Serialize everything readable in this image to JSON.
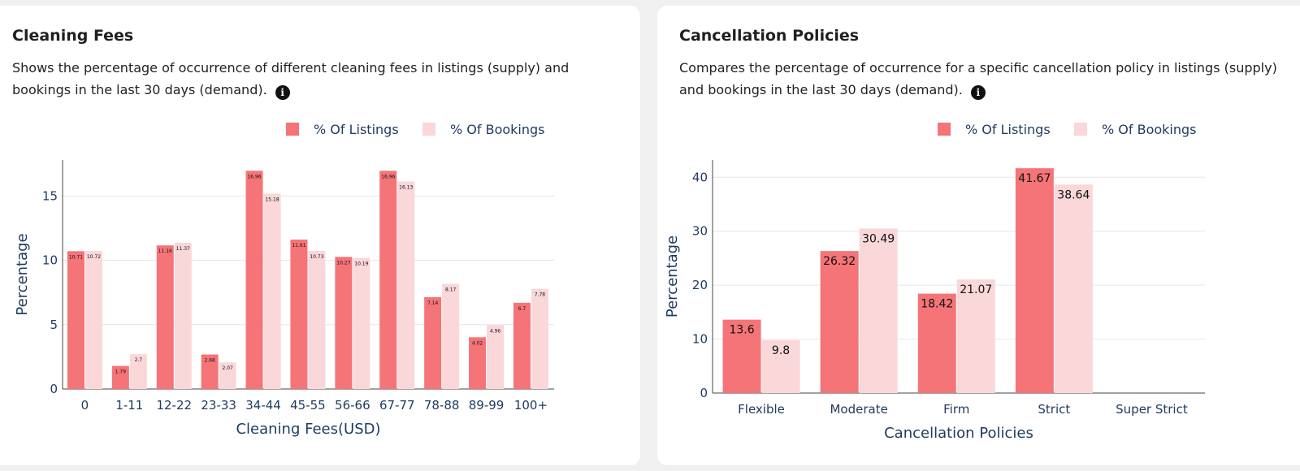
{
  "info_icon": "i",
  "colors": {
    "listings": "#f47478",
    "bookings": "#fad7d8",
    "axis": "#1e3a5f"
  },
  "panels": [
    {
      "title": "Cleaning Fees",
      "description": "Shows the percentage of occurrence of different cleaning fees in listings (supply) and bookings in the last 30 days (demand).",
      "chart_data": {
        "type": "bar",
        "title": "",
        "xlabel": "Cleaning Fees(USD)",
        "ylabel": "Percentage",
        "categories": [
          "0",
          "1-11",
          "12-22",
          "23-33",
          "34-44",
          "45-55",
          "56-66",
          "67-77",
          "78-88",
          "89-99",
          "100+"
        ],
        "series": [
          {
            "name": "% Of Listings",
            "values": [
              10.71,
              1.79,
              11.16,
              2.68,
              16.96,
              11.61,
              10.27,
              16.96,
              7.14,
              4.02,
              6.7
            ]
          },
          {
            "name": "% Of Bookings",
            "values": [
              10.72,
              2.7,
              11.37,
              2.07,
              15.18,
              10.73,
              10.19,
              16.13,
              8.17,
              4.96,
              7.78
            ]
          }
        ],
        "ylim": [
          0,
          17.8
        ],
        "yticks": [
          0,
          5,
          10,
          15
        ],
        "legend": "top-right",
        "grid": true
      }
    },
    {
      "title": "Cancellation Policies",
      "description": "Compares the percentage of occurrence for a specific cancellation policy in listings (supply) and bookings in the last 30 days (demand).",
      "chart_data": {
        "type": "bar",
        "title": "",
        "xlabel": "Cancellation Policies",
        "ylabel": "Percentage",
        "categories": [
          "Flexible",
          "Moderate",
          "Firm",
          "Strict",
          "Super Strict"
        ],
        "series": [
          {
            "name": "% Of Listings",
            "values": [
              13.6,
              26.32,
              18.42,
              41.67,
              null
            ]
          },
          {
            "name": "% Of Bookings",
            "values": [
              9.8,
              30.49,
              21.07,
              38.64,
              null
            ]
          }
        ],
        "ylim": [
          0,
          43.2
        ],
        "yticks": [
          0,
          10,
          20,
          30,
          40
        ],
        "legend": "top-right",
        "grid": true
      }
    }
  ]
}
